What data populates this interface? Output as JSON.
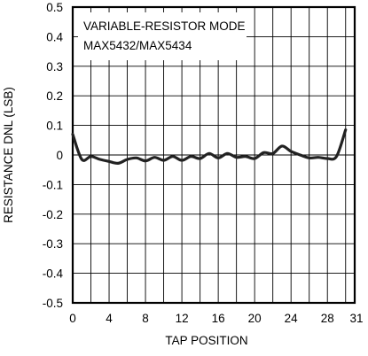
{
  "chart_data": {
    "type": "line",
    "title": "",
    "xlabel": "TAP POSITION",
    "ylabel": "RESISTANCE DNL (LSB)",
    "xlim": [
      0,
      31
    ],
    "ylim": [
      -0.5,
      0.5
    ],
    "x_ticks": [
      0,
      4,
      8,
      12,
      16,
      20,
      24,
      28,
      31
    ],
    "x_tick_labels": [
      "0",
      "4",
      "8",
      "12",
      "16",
      "20",
      "24",
      "28",
      "31"
    ],
    "y_ticks": [
      0.5,
      0.4,
      0.3,
      0.2,
      0.1,
      0,
      -0.1,
      -0.2,
      -0.3,
      -0.4,
      -0.5
    ],
    "y_tick_labels": [
      "0.5",
      "0.4",
      "0.3",
      "0.2",
      "0.1",
      "0",
      "-0.1",
      "-0.2",
      "-0.3",
      "-0.4",
      "-0.5"
    ],
    "grid": true,
    "annotations": [
      "VARIABLE-RESISTOR MODE",
      "MAX5432/MAX5434"
    ],
    "series": [
      {
        "x": [
          0,
          1,
          2,
          3,
          4,
          5,
          6,
          7,
          8,
          9,
          10,
          11,
          12,
          13,
          14,
          15,
          16,
          17,
          18,
          19,
          20,
          21,
          22,
          23,
          24,
          25,
          26,
          27,
          28,
          29,
          30
        ],
        "values": [
          0.07,
          -0.015,
          -0.005,
          -0.015,
          -0.022,
          -0.028,
          -0.015,
          -0.01,
          -0.02,
          -0.008,
          -0.018,
          -0.005,
          -0.018,
          -0.005,
          -0.012,
          0.005,
          -0.01,
          0.005,
          -0.008,
          -0.005,
          -0.012,
          0.008,
          0.005,
          0.03,
          0.012,
          0.0,
          -0.01,
          -0.008,
          -0.012,
          -0.005,
          0.085
        ]
      }
    ],
    "colors": {
      "line": "#222222",
      "grid": "#000000"
    }
  }
}
